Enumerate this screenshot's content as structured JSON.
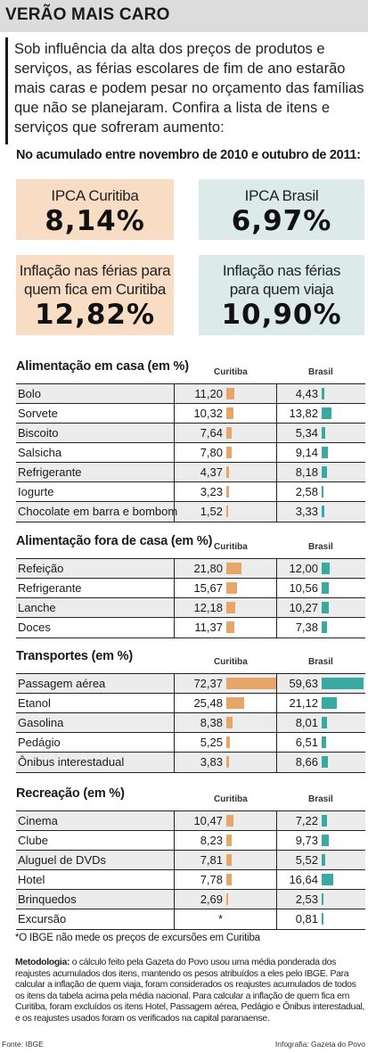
{
  "title": "VERÃO MAIS CARO",
  "intro": "Sob influência da alta dos preços de produtos e serviços, as férias escolares de fim de ano estarão mais caras e podem pesar no orçamento das famílias que não se planejaram. Confira a lista de itens e serviços que sofreram aumento:",
  "period": "No acumulado entre novembro de 2010 e outubro de 2011:",
  "summary": {
    "ipca_curitiba": {
      "label": "IPCA Curitiba",
      "value": "8,14%"
    },
    "ipca_brasil": {
      "label": "IPCA Brasil",
      "value": "6,97%"
    },
    "ferias_curitiba": {
      "label1": "Inflação nas férias para",
      "label2": "quem fica em Curitiba",
      "value": "12,82%"
    },
    "ferias_viaja": {
      "label1": "Inflação nas férias",
      "label2": "para quem viaja",
      "value": "10,90%"
    }
  },
  "colors": {
    "curitiba": "#e6a66a",
    "brasil": "#3aa9a2",
    "box_curitiba": "#f8dcc4",
    "box_brasil": "#dcebea"
  },
  "chart_data": {
    "type": "bar",
    "column_headers": {
      "curitiba": "Curitiba",
      "brasil": "Brasil"
    },
    "sections": [
      {
        "title": "Alimentação em casa (em %)",
        "rows": [
          {
            "name": "Bolo",
            "curitiba": 11.2,
            "curitiba_label": "11,20",
            "brasil": 4.43,
            "brasil_label": "4,43"
          },
          {
            "name": "Sorvete",
            "curitiba": 10.32,
            "curitiba_label": "10,32",
            "brasil": 13.82,
            "brasil_label": "13,82"
          },
          {
            "name": "Biscoito",
            "curitiba": 7.64,
            "curitiba_label": "7,64",
            "brasil": 5.34,
            "brasil_label": "5,34"
          },
          {
            "name": "Salsicha",
            "curitiba": 7.8,
            "curitiba_label": "7,80",
            "brasil": 9.14,
            "brasil_label": "9,14"
          },
          {
            "name": "Refrigerante",
            "curitiba": 4.37,
            "curitiba_label": "4,37",
            "brasil": 8.18,
            "brasil_label": "8,18"
          },
          {
            "name": "Iogurte",
            "curitiba": 3.23,
            "curitiba_label": "3,23",
            "brasil": 2.58,
            "brasil_label": "2,58"
          },
          {
            "name": "Chocolate em barra e bombom",
            "curitiba": 1.52,
            "curitiba_label": "1,52",
            "brasil": 3.33,
            "brasil_label": "3,33"
          }
        ]
      },
      {
        "title": "Alimentação fora de casa (em %)",
        "rows": [
          {
            "name": "Refeição",
            "curitiba": 21.8,
            "curitiba_label": "21,80",
            "brasil": 12.0,
            "brasil_label": "12,00"
          },
          {
            "name": "Refrigerante",
            "curitiba": 15.67,
            "curitiba_label": "15,67",
            "brasil": 10.56,
            "brasil_label": "10,56"
          },
          {
            "name": "Lanche",
            "curitiba": 12.18,
            "curitiba_label": "12,18",
            "brasil": 10.27,
            "brasil_label": "10,27"
          },
          {
            "name": "Doces",
            "curitiba": 11.37,
            "curitiba_label": "11,37",
            "brasil": 7.38,
            "brasil_label": "7,38"
          }
        ]
      },
      {
        "title": "Transportes (em %)",
        "rows": [
          {
            "name": "Passagem aérea",
            "curitiba": 72.37,
            "curitiba_label": "72,37",
            "brasil": 59.63,
            "brasil_label": "59,63"
          },
          {
            "name": "Etanol",
            "curitiba": 25.48,
            "curitiba_label": "25,48",
            "brasil": 21.12,
            "brasil_label": "21,12"
          },
          {
            "name": "Gasolina",
            "curitiba": 8.38,
            "curitiba_label": "8,38",
            "brasil": 8.01,
            "brasil_label": "8,01"
          },
          {
            "name": "Pedágio",
            "curitiba": 5.25,
            "curitiba_label": "5,25",
            "brasil": 6.51,
            "brasil_label": "6,51"
          },
          {
            "name": "Ônibus interestadual",
            "curitiba": 3.83,
            "curitiba_label": "3,83",
            "brasil": 8.66,
            "brasil_label": "8,66"
          }
        ]
      },
      {
        "title": "Recreação (em %)",
        "rows": [
          {
            "name": "Cinema",
            "curitiba": 10.47,
            "curitiba_label": "10,47",
            "brasil": 7.22,
            "brasil_label": "7,22"
          },
          {
            "name": "Clube",
            "curitiba": 8.23,
            "curitiba_label": "8,23",
            "brasil": 9.73,
            "brasil_label": "9,73"
          },
          {
            "name": "Aluguel de DVDs",
            "curitiba": 7.81,
            "curitiba_label": "7,81",
            "brasil": 5.52,
            "brasil_label": "5,52"
          },
          {
            "name": "Hotel",
            "curitiba": 7.78,
            "curitiba_label": "7,78",
            "brasil": 16.64,
            "brasil_label": "16,64"
          },
          {
            "name": "Brinquedos",
            "curitiba": 2.69,
            "curitiba_label": "2,69",
            "brasil": 2.53,
            "brasil_label": "2,53"
          },
          {
            "name": "Excursão",
            "curitiba": null,
            "curitiba_label": "*",
            "brasil": 0.81,
            "brasil_label": "0,81"
          }
        ]
      }
    ]
  },
  "footnote": "*O IBGE não mede os preços de excursões em Curitiba",
  "methodology_label": "Metodologia:",
  "methodology_text": " o cálculo feito pela Gazeta do Povo usou uma média ponderada dos reajustes acumulados dos itens, mantendo os pesos atribuídos a eles pelo IBGE. Para calcular a inflação de quem viaja, foram considerados os reajustes acumulados de todos os itens da tabela acima pela média nacional. Para calcular a inflação de quem fica em Curitiba, foram excluídos os itens Hotel, Passagem aérea, Pedágio e Ônibus interestadual, e os reajustes usados foram os verificados na capital paranaense.",
  "source": "Fonte: IBGE",
  "credit": "Infografia: Gazeta do Povo"
}
